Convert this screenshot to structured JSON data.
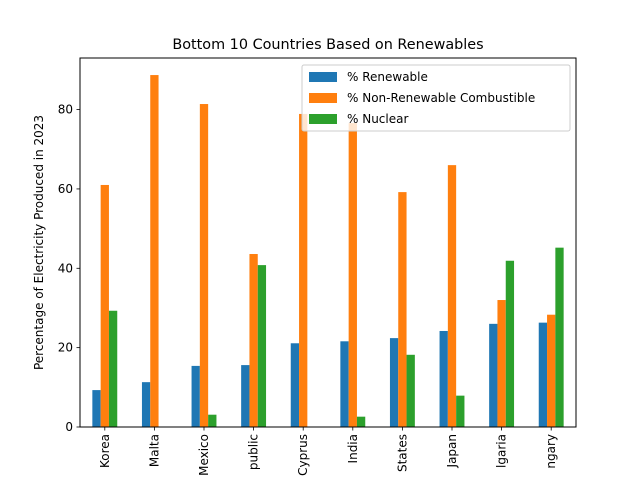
{
  "chart_data": {
    "type": "bar",
    "title": "Bottom 10 Countries Based on Renewables",
    "xlabel": "",
    "ylabel": "Percentage of Electricity Produced in 2023",
    "ylim": [
      0,
      93
    ],
    "yticks": [
      0,
      20,
      40,
      60,
      80
    ],
    "grid": false,
    "legend_position": "top-right",
    "categories": [
      "Korea",
      "Malta",
      "Mexico",
      "public",
      "Cyprus",
      "India",
      "States",
      "Japan",
      "lgaria",
      "ngary"
    ],
    "series": [
      {
        "name": "% Renewable",
        "color": "#1f77b4",
        "values": [
          9.3,
          11.3,
          15.4,
          15.6,
          21.1,
          21.6,
          22.4,
          24.2,
          26.0,
          26.3
        ]
      },
      {
        "name": "% Non-Renewable Combustible",
        "color": "#ff7f0e",
        "values": [
          61.0,
          88.7,
          81.4,
          43.6,
          78.9,
          76.6,
          59.2,
          66.0,
          32.0,
          28.3
        ]
      },
      {
        "name": "% Nuclear",
        "color": "#2ca02c",
        "values": [
          29.3,
          0,
          3.1,
          40.8,
          0,
          2.6,
          18.2,
          7.9,
          41.9,
          45.2
        ]
      }
    ]
  }
}
